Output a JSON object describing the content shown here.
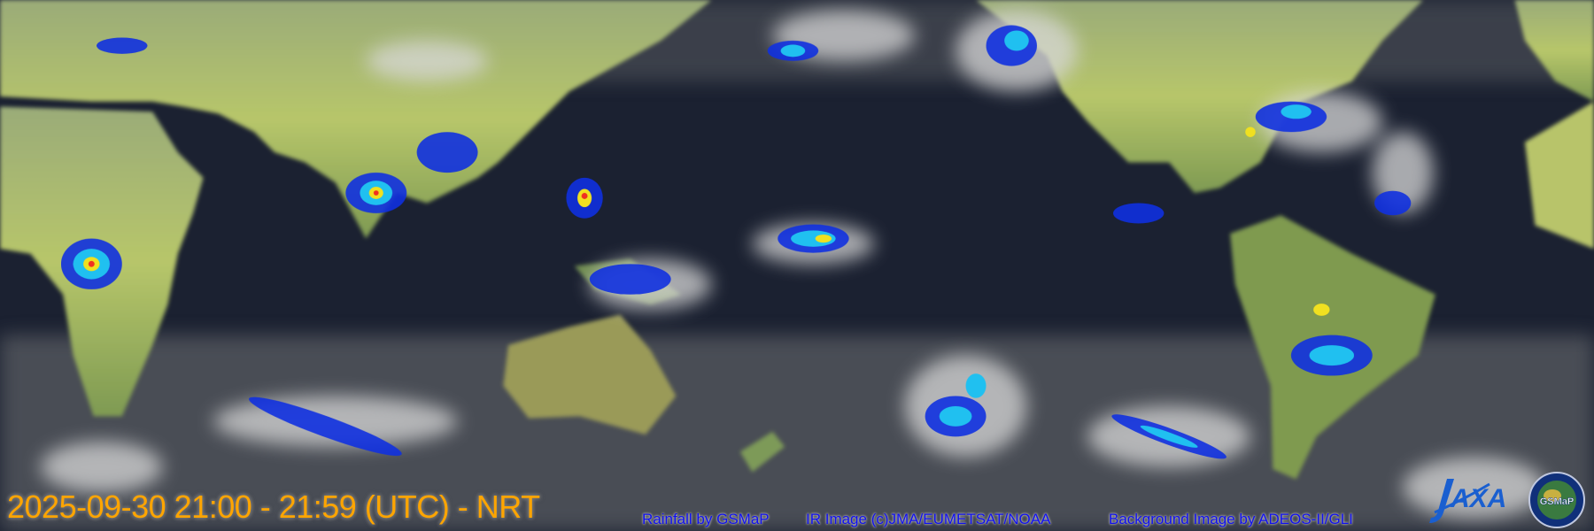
{
  "overlay": {
    "timestamp": "2025-09-30 21:00 - 21:59 (UTC) - NRT",
    "credits": {
      "rainfall": "Rainfall by GSMaP",
      "ir_image": "IR Image (c)JMA/EUMETSAT/NOAA",
      "background": "Background Image by ADEOS-II/GLI"
    }
  },
  "logos": {
    "jaxa": "JAXA",
    "gsmap": "GSMaP"
  },
  "colors": {
    "ocean": "#1a2030",
    "land": "#8fa860",
    "cloud": "#d8d8d8",
    "rain_light": "#1030e0",
    "rain_moderate": "#20c0f0",
    "rain_heavy": "#f0e020",
    "rain_extreme": "#f03020",
    "timestamp_text": "#ffa500",
    "credit_text": "#1010ee"
  }
}
